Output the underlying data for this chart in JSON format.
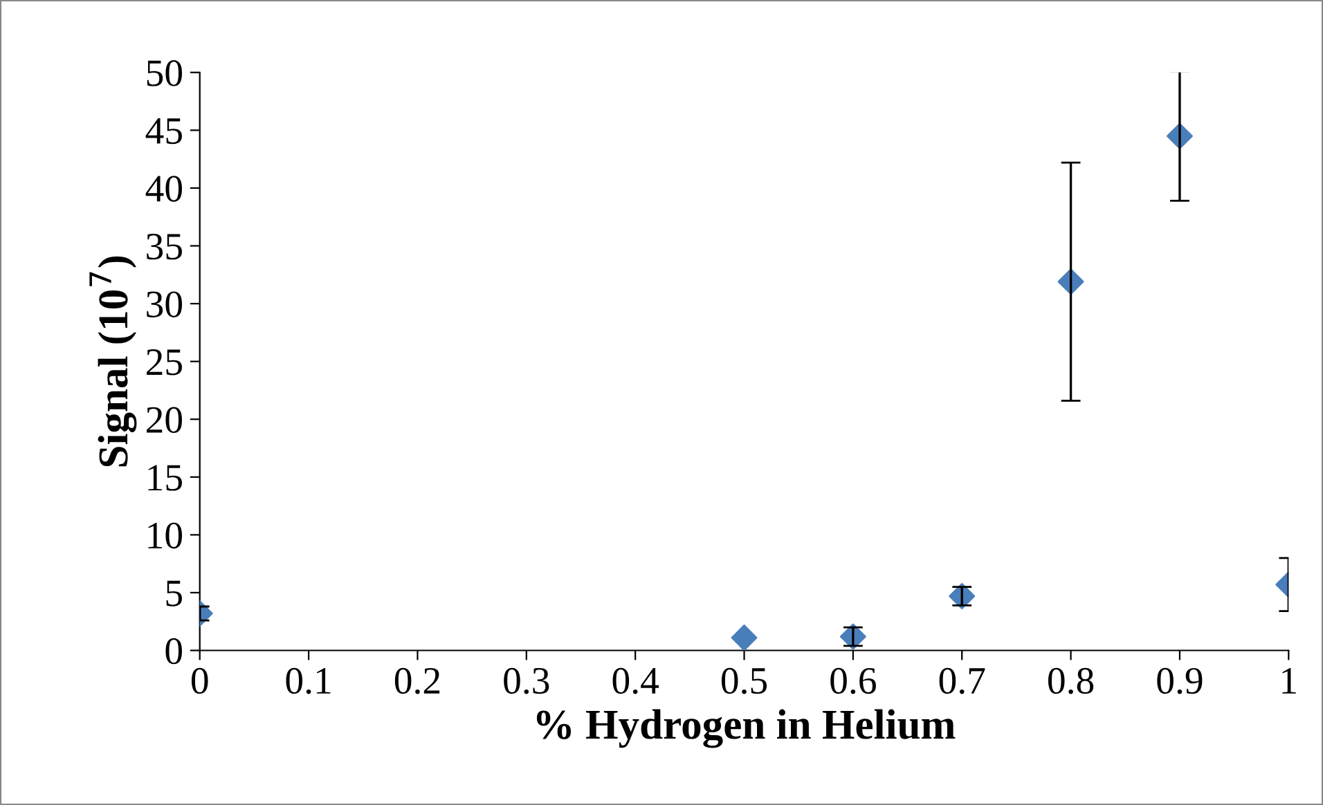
{
  "chart_data": {
    "type": "scatter",
    "xlabel": "% Hydrogen in Helium",
    "ylabel": "Signal (10$^{7}$)",
    "x": [
      0,
      0.5,
      0.6,
      0.7,
      0.8,
      0.9,
      1
    ],
    "series": [
      {
        "color": "#4a7ebb",
        "values": [
          3.2,
          1.1,
          1.2,
          4.7,
          31.9,
          44.5,
          5.7
        ],
        "errors": [
          0.6,
          null,
          0.8,
          0.8,
          10.3,
          5.6,
          2.3
        ]
      }
    ],
    "xlim": [
      0,
      1
    ],
    "xticks": [
      0,
      0.1,
      0.2,
      0.3,
      0.4,
      0.5,
      0.6,
      0.7,
      0.8,
      0.9,
      1
    ],
    "ylim": [
      0,
      50
    ],
    "yticks": [
      0,
      5,
      10,
      15,
      20,
      25,
      30,
      35,
      40,
      45,
      50
    ],
    "marker": "diamond",
    "grid": false,
    "legend": false
  }
}
